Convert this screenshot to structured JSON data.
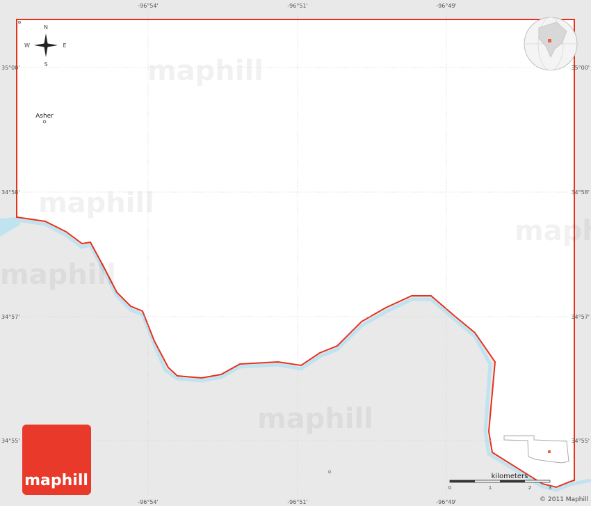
{
  "map": {
    "longitude_labels": [
      "-96°54'",
      "-96°51'",
      "-96°49'"
    ],
    "latitude_labels": [
      "35°00'",
      "34°58'",
      "34°57'",
      "34°55'"
    ],
    "compass": {
      "north": "N",
      "south": "S",
      "west": "W",
      "east": "E"
    },
    "place": "Asher",
    "scale": {
      "title": "kilometers",
      "ticks": [
        "0",
        "1",
        "2",
        "3"
      ]
    },
    "watermark": "maphill",
    "logo": "maphill",
    "copyright": "© 2011 Maphill"
  }
}
